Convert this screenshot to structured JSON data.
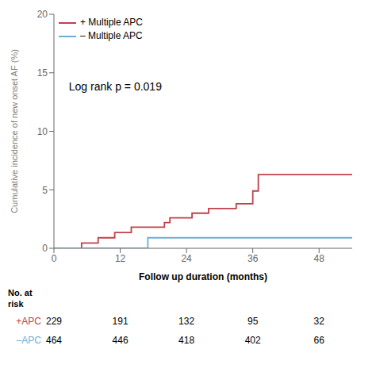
{
  "chart_data": {
    "type": "step",
    "x_label": "Follow up duration (months)",
    "y_label": "Cumulative incidence of new onset AF (%)",
    "xlim": [
      0,
      54
    ],
    "ylim": [
      0,
      20
    ],
    "xticks": [
      0,
      12,
      24,
      36,
      48
    ],
    "yticks": [
      0,
      5,
      10,
      15,
      20
    ],
    "grid": false,
    "legend": "upper left",
    "annotations": [
      {
        "text": "Log rank p = 0.019"
      }
    ],
    "series": [
      {
        "name": "+ Multiple APC",
        "color": "#c0404a",
        "x": [
          0,
          3,
          5,
          7,
          8,
          10,
          11,
          13,
          14,
          17,
          20,
          21,
          22,
          24,
          25,
          27,
          28,
          32,
          33,
          35,
          36,
          37,
          54
        ],
        "values": [
          0,
          0,
          0.45,
          0.45,
          0.9,
          0.9,
          1.35,
          1.35,
          1.8,
          1.8,
          2.2,
          2.6,
          2.6,
          2.6,
          3.0,
          3.0,
          3.4,
          3.4,
          3.8,
          3.8,
          4.9,
          6.3,
          6.3
        ]
      },
      {
        "name": "– Multiple APC",
        "color": "#6aaed6",
        "x": [
          0,
          16,
          17,
          54
        ],
        "values": [
          0,
          0,
          0.9,
          0.9
        ]
      }
    ],
    "at_risk": {
      "title": "No. at\nrisk",
      "rows": [
        {
          "name": "+APC",
          "color": "#c0404a",
          "values": [
            229,
            191,
            132,
            95,
            32
          ]
        },
        {
          "name": "–APC",
          "color": "#6aaed6",
          "values": [
            464,
            446,
            418,
            402,
            66
          ]
        }
      ]
    }
  }
}
